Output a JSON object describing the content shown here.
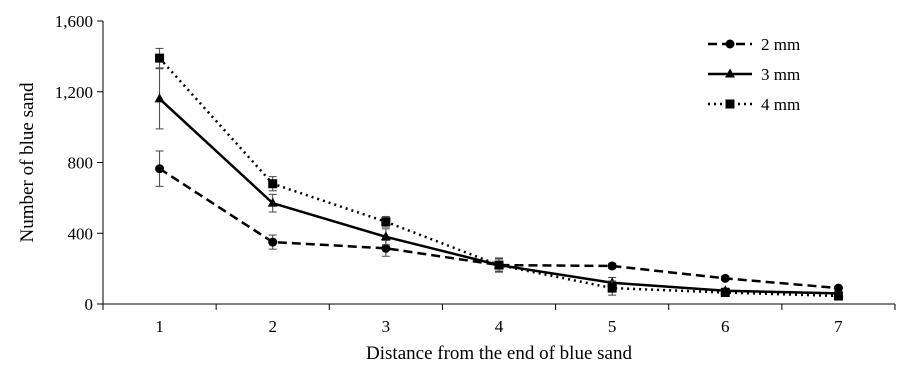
{
  "chart_data": {
    "type": "line",
    "title": "",
    "xlabel": "Distance from the end of blue sand",
    "ylabel": "Number of blue sand",
    "categories": [
      "1",
      "2",
      "3",
      "4",
      "5",
      "6",
      "7"
    ],
    "ylim": [
      0,
      1600
    ],
    "yticks": [
      0,
      400,
      800,
      1200,
      1600
    ],
    "ytick_labels": [
      "0",
      "400",
      "800",
      "1,200",
      "1,600"
    ],
    "grid": false,
    "legend_position": "top-right",
    "series": [
      {
        "name": "2 mm",
        "values": [
          765,
          350,
          315,
          220,
          215,
          145,
          90
        ],
        "errors": [
          100,
          40,
          45,
          40,
          15,
          12,
          10
        ],
        "dash": "dashed",
        "marker": "circle",
        "color": "#000000"
      },
      {
        "name": "3 mm",
        "values": [
          1160,
          570,
          380,
          220,
          120,
          75,
          60
        ],
        "errors": [
          170,
          50,
          45,
          35,
          30,
          15,
          10
        ],
        "dash": "solid",
        "marker": "triangle",
        "color": "#000000"
      },
      {
        "name": "4 mm",
        "values": [
          1390,
          680,
          465,
          220,
          90,
          65,
          45
        ],
        "errors": [
          55,
          40,
          30,
          35,
          40,
          15,
          10
        ],
        "dash": "dotted",
        "marker": "square",
        "color": "#000000"
      }
    ]
  }
}
